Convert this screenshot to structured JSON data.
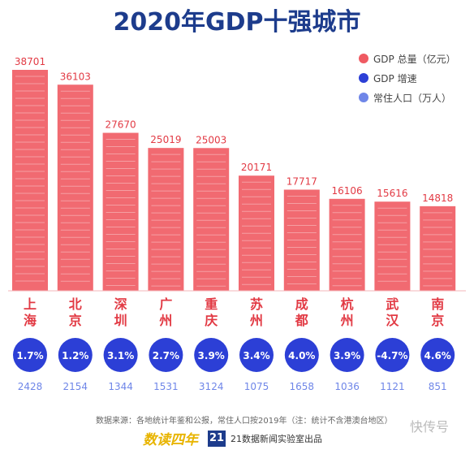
{
  "title": "2020年GDP十强城市",
  "legend": [
    {
      "label": "GDP 总量（亿元）",
      "color": "#ef5a62"
    },
    {
      "label": "GDP 增速",
      "color": "#2c3fd6"
    },
    {
      "label": "常住人口（万人）",
      "color": "#6f86e8"
    }
  ],
  "chart_data": {
    "type": "bar",
    "title": "2020年GDP十强城市",
    "categories": [
      "上海",
      "北京",
      "深圳",
      "广州",
      "重庆",
      "苏州",
      "成都",
      "杭州",
      "武汉",
      "南京"
    ],
    "series": [
      {
        "name": "GDP 总量（亿元）",
        "values": [
          38701,
          36103,
          27670,
          25019,
          25003,
          20171,
          17717,
          16106,
          15616,
          14818
        ]
      },
      {
        "name": "GDP 增速",
        "values": [
          "1.7%",
          "1.2%",
          "3.1%",
          "2.7%",
          "3.9%",
          "3.4%",
          "4.0%",
          "3.9%",
          "-4.7%",
          "4.6%"
        ]
      },
      {
        "name": "常住人口（万人）",
        "values": [
          2428,
          2154,
          1344,
          1531,
          3124,
          1075,
          1658,
          1036,
          1121,
          851
        ]
      }
    ],
    "bar_color": "#ef5a62",
    "circle_color": "#2c3fd6",
    "population_color": "#6f86e8"
  },
  "footer": {
    "note": "数据来源：各地统计年鉴和公报，常住人口按2019年（注：统计不含港澳台地区）",
    "logo1": "数读四年",
    "logo2_num": "21",
    "logo2_text": "21数据新闻实验室出品",
    "watermark": "快传号"
  }
}
